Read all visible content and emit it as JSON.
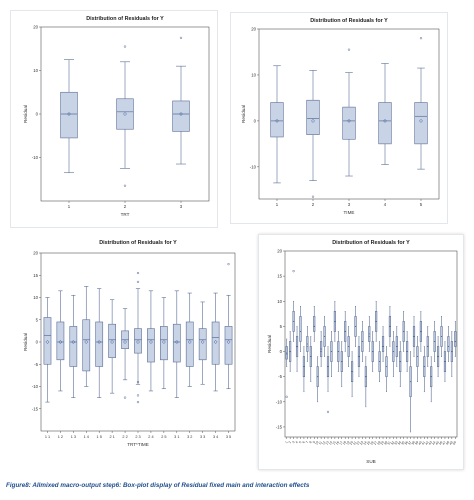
{
  "caption": "Figure8: Allmixed macro-output step6: Box-plot display of Residual fixed main and interaction effects",
  "colors": {
    "box_fill": "#c9d3e6",
    "box_stroke": "#5b6e96",
    "mean_marker": "#3b5f9e",
    "axis": "#555555"
  },
  "chart_data": [
    {
      "type": "box",
      "title": "Distribution of Residuals for Y",
      "xlabel": "TRT",
      "ylabel": "Residual",
      "ylim": [
        -20,
        20
      ],
      "yticks": [
        -10,
        0,
        10,
        20
      ],
      "categories": [
        "1",
        "2",
        "3"
      ],
      "boxes": [
        {
          "min": -13.5,
          "q1": -5.5,
          "median": 0.0,
          "q3": 5.0,
          "max": 12.5,
          "mean": 0.0,
          "outliers": []
        },
        {
          "min": -12.5,
          "q1": -3.5,
          "median": 0.5,
          "q3": 3.5,
          "max": 12.0,
          "mean": 0.0,
          "outliers": [
            15.5,
            -16.5
          ]
        },
        {
          "min": -11.5,
          "q1": -4.0,
          "median": 0.0,
          "q3": 3.0,
          "max": 11.0,
          "mean": 0.0,
          "outliers": [
            17.5
          ]
        }
      ]
    },
    {
      "type": "box",
      "title": "Distribution of Residuals for Y",
      "xlabel": "TIME",
      "ylabel": "Residual",
      "ylim": [
        -17,
        20
      ],
      "yticks": [
        -10,
        0,
        10,
        20
      ],
      "categories": [
        "1",
        "2",
        "3",
        "4",
        "5"
      ],
      "boxes": [
        {
          "min": -13.5,
          "q1": -3.5,
          "median": 0.0,
          "q3": 4.0,
          "max": 12.0,
          "mean": 0.0,
          "outliers": []
        },
        {
          "min": -13.0,
          "q1": -3.0,
          "median": 0.5,
          "q3": 4.5,
          "max": 11.0,
          "mean": 0.0,
          "outliers": [
            -16.5
          ]
        },
        {
          "min": -12.0,
          "q1": -4.0,
          "median": 0.0,
          "q3": 3.0,
          "max": 10.5,
          "mean": 0.0,
          "outliers": [
            15.5
          ]
        },
        {
          "min": -9.5,
          "q1": -5.0,
          "median": 0.0,
          "q3": 4.0,
          "max": 12.5,
          "mean": 0.0,
          "outliers": []
        },
        {
          "min": -10.5,
          "q1": -5.0,
          "median": 1.0,
          "q3": 4.0,
          "max": 11.5,
          "mean": 0.0,
          "outliers": [
            18.0
          ]
        }
      ]
    },
    {
      "type": "box",
      "title": "Distribution of Residuals for Y",
      "xlabel": "TRT*TIME",
      "ylabel": "Residual",
      "ylim": [
        -20,
        20
      ],
      "yticks": [
        -15,
        -10,
        -5,
        0,
        5,
        10,
        15,
        20
      ],
      "categories": [
        "1 1",
        "1 2",
        "1 3",
        "1 4",
        "1 5",
        "2 1",
        "2 2",
        "2 3",
        "2 4",
        "2 5",
        "3 1",
        "3 2",
        "3 3",
        "3 4",
        "3 5"
      ],
      "boxes": [
        {
          "min": -13.5,
          "q1": -5.0,
          "median": 1.5,
          "q3": 5.5,
          "max": 10.0,
          "mean": 0.0,
          "outliers": []
        },
        {
          "min": -11.0,
          "q1": -4.0,
          "median": 0.0,
          "q3": 4.5,
          "max": 11.5,
          "mean": 0.0,
          "outliers": []
        },
        {
          "min": -12.5,
          "q1": -5.5,
          "median": 0.0,
          "q3": 3.5,
          "max": 10.5,
          "mean": 0.0,
          "outliers": []
        },
        {
          "min": -10.0,
          "q1": -6.5,
          "median": 0.5,
          "q3": 5.0,
          "max": 12.5,
          "mean": 0.0,
          "outliers": []
        },
        {
          "min": -12.5,
          "q1": -5.5,
          "median": 0.0,
          "q3": 4.5,
          "max": 12.0,
          "mean": 0.0,
          "outliers": []
        },
        {
          "min": -11.5,
          "q1": -3.5,
          "median": 0.5,
          "q3": 4.0,
          "max": 9.5,
          "mean": 0.0,
          "outliers": []
        },
        {
          "min": -8.5,
          "q1": -1.5,
          "median": 0.5,
          "q3": 2.5,
          "max": 7.5,
          "mean": 0.0,
          "outliers": [
            -12.5
          ]
        },
        {
          "min": -9.5,
          "q1": -2.5,
          "median": 0.5,
          "q3": 3.0,
          "max": 12.0,
          "mean": 0.0,
          "outliers": [
            15.5,
            13.5,
            -13.5,
            -9.0,
            -12.0
          ]
        },
        {
          "min": -11.0,
          "q1": -4.5,
          "median": 0.5,
          "q3": 3.0,
          "max": 11.5,
          "mean": 0.0,
          "outliers": []
        },
        {
          "min": -10.5,
          "q1": -4.0,
          "median": 0.5,
          "q3": 3.5,
          "max": 10.0,
          "mean": 0.0,
          "outliers": []
        },
        {
          "min": -12.5,
          "q1": -4.5,
          "median": 0.0,
          "q3": 4.0,
          "max": 11.5,
          "mean": 0.0,
          "outliers": []
        },
        {
          "min": -10.0,
          "q1": -5.5,
          "median": 0.5,
          "q3": 4.5,
          "max": 11.0,
          "mean": 0.0,
          "outliers": []
        },
        {
          "min": -9.5,
          "q1": -4.0,
          "median": 0.5,
          "q3": 3.0,
          "max": 9.0,
          "mean": 0.0,
          "outliers": []
        },
        {
          "min": -11.0,
          "q1": -5.0,
          "median": 1.0,
          "q3": 4.5,
          "max": 11.0,
          "mean": 0.0,
          "outliers": []
        },
        {
          "min": -10.5,
          "q1": -5.0,
          "median": 0.5,
          "q3": 3.5,
          "max": 10.5,
          "mean": 0.0,
          "outliers": [
            17.5
          ]
        }
      ]
    },
    {
      "type": "box",
      "title": "Distribution of Residuals for Y",
      "xlabel": "SUB",
      "ylabel": "Residual",
      "ylim": [
        -17,
        20
      ],
      "yticks": [
        -15,
        -10,
        -5,
        0,
        5,
        10,
        15,
        20
      ],
      "categories": [
        "1",
        "2",
        "3",
        "4",
        "5",
        "6",
        "7",
        "8",
        "9",
        "10",
        "11",
        "12",
        "13",
        "14",
        "15",
        "16",
        "17",
        "18",
        "19",
        "20",
        "21",
        "22",
        "23",
        "24",
        "25",
        "26",
        "27",
        "28",
        "29",
        "30",
        "31",
        "32",
        "33",
        "34",
        "35",
        "36",
        "37",
        "38",
        "39",
        "40",
        "41",
        "42",
        "43",
        "44",
        "45",
        "46",
        "47",
        "48",
        "49",
        "50"
      ],
      "boxes": [
        {
          "min": -3.0,
          "q1": -1.5,
          "median": -0.5,
          "q3": 1.0,
          "max": 2.5,
          "mean": -0.3,
          "outliers": [
            -9.0
          ]
        },
        {
          "min": -4.0,
          "q1": -2.0,
          "median": 0.0,
          "q3": 2.0,
          "max": 4.0,
          "mean": 0.0,
          "outliers": []
        },
        {
          "min": 2.0,
          "q1": 4.0,
          "median": 6.0,
          "q3": 8.0,
          "max": 10.0,
          "mean": 6.0,
          "outliers": [
            16.0
          ]
        },
        {
          "min": -4.0,
          "q1": -1.0,
          "median": 1.0,
          "q3": 3.0,
          "max": 5.0,
          "mean": 1.0,
          "outliers": []
        },
        {
          "min": 0.0,
          "q1": 2.0,
          "median": 4.0,
          "q3": 7.0,
          "max": 9.0,
          "mean": 4.0,
          "outliers": []
        },
        {
          "min": -8.0,
          "q1": -5.0,
          "median": -3.0,
          "q3": -1.0,
          "max": 1.0,
          "mean": -3.0,
          "outliers": []
        },
        {
          "min": -2.0,
          "q1": 0.0,
          "median": 1.0,
          "q3": 3.0,
          "max": 5.0,
          "mean": 1.5,
          "outliers": []
        },
        {
          "min": -6.0,
          "q1": -3.0,
          "median": -1.0,
          "q3": 1.0,
          "max": 3.0,
          "mean": -1.0,
          "outliers": []
        },
        {
          "min": 2.0,
          "q1": 4.0,
          "median": 5.0,
          "q3": 7.0,
          "max": 9.0,
          "mean": 5.0,
          "outliers": []
        },
        {
          "min": -10.0,
          "q1": -7.0,
          "median": -5.0,
          "q3": -3.0,
          "max": -1.0,
          "mean": -5.0,
          "outliers": []
        },
        {
          "min": -3.0,
          "q1": -1.0,
          "median": 0.0,
          "q3": 2.0,
          "max": 4.0,
          "mean": 0.5,
          "outliers": []
        },
        {
          "min": -1.0,
          "q1": 1.0,
          "median": 3.0,
          "q3": 5.0,
          "max": 7.0,
          "mean": 3.0,
          "outliers": []
        },
        {
          "min": -8.0,
          "q1": -5.0,
          "median": -3.0,
          "q3": -1.0,
          "max": 1.0,
          "mean": -3.0,
          "outliers": [
            -12.0
          ]
        },
        {
          "min": -5.0,
          "q1": -2.0,
          "median": 0.0,
          "q3": 2.0,
          "max": 4.0,
          "mean": 0.0,
          "outliers": []
        },
        {
          "min": 2.0,
          "q1": 4.0,
          "median": 6.0,
          "q3": 8.0,
          "max": 10.0,
          "mean": 6.0,
          "outliers": []
        },
        {
          "min": -4.0,
          "q1": -2.0,
          "median": 0.0,
          "q3": 2.0,
          "max": 4.0,
          "mean": 0.0,
          "outliers": []
        },
        {
          "min": -7.0,
          "q1": -4.0,
          "median": -2.0,
          "q3": 0.0,
          "max": 2.0,
          "mean": -2.0,
          "outliers": []
        },
        {
          "min": 0.0,
          "q1": 2.0,
          "median": 4.0,
          "q3": 6.0,
          "max": 8.0,
          "mean": 4.0,
          "outliers": []
        },
        {
          "min": -3.0,
          "q1": -1.0,
          "median": 1.0,
          "q3": 3.0,
          "max": 5.0,
          "mean": 1.0,
          "outliers": []
        },
        {
          "min": -9.0,
          "q1": -6.0,
          "median": -4.0,
          "q3": -2.0,
          "max": 0.0,
          "mean": -4.0,
          "outliers": []
        },
        {
          "min": 1.0,
          "q1": 3.0,
          "median": 5.0,
          "q3": 7.0,
          "max": 9.0,
          "mean": 5.0,
          "outliers": []
        },
        {
          "min": -5.0,
          "q1": -3.0,
          "median": -1.0,
          "q3": 1.0,
          "max": 3.0,
          "mean": -1.0,
          "outliers": []
        },
        {
          "min": -2.0,
          "q1": 0.0,
          "median": 2.0,
          "q3": 4.0,
          "max": 6.0,
          "mean": 2.0,
          "outliers": []
        },
        {
          "min": -11.0,
          "q1": -7.0,
          "median": -5.0,
          "q3": -3.0,
          "max": -1.0,
          "mean": -5.0,
          "outliers": []
        },
        {
          "min": 0.0,
          "q1": 2.0,
          "median": 3.0,
          "q3": 5.0,
          "max": 7.0,
          "mean": 3.5,
          "outliers": []
        },
        {
          "min": -4.0,
          "q1": -2.0,
          "median": 0.0,
          "q3": 2.0,
          "max": 4.0,
          "mean": 0.0,
          "outliers": []
        },
        {
          "min": 2.0,
          "q1": 4.0,
          "median": 6.0,
          "q3": 8.0,
          "max": 10.0,
          "mean": 6.0,
          "outliers": []
        },
        {
          "min": -6.0,
          "q1": -4.0,
          "median": -2.0,
          "q3": 0.0,
          "max": 2.0,
          "mean": -2.0,
          "outliers": []
        },
        {
          "min": -2.0,
          "q1": 0.0,
          "median": 1.0,
          "q3": 3.0,
          "max": 5.0,
          "mean": 1.0,
          "outliers": []
        },
        {
          "min": -8.0,
          "q1": -5.0,
          "median": -3.0,
          "q3": -1.0,
          "max": 1.0,
          "mean": -3.0,
          "outliers": []
        },
        {
          "min": 1.0,
          "q1": 3.0,
          "median": 5.0,
          "q3": 7.0,
          "max": 9.0,
          "mean": 5.0,
          "outliers": []
        },
        {
          "min": -5.0,
          "q1": -2.0,
          "median": 0.0,
          "q3": 2.0,
          "max": 4.0,
          "mean": 0.0,
          "outliers": []
        },
        {
          "min": -3.0,
          "q1": -1.0,
          "median": 1.0,
          "q3": 3.0,
          "max": 5.0,
          "mean": 1.0,
          "outliers": []
        },
        {
          "min": -7.0,
          "q1": -4.0,
          "median": -2.0,
          "q3": 0.0,
          "max": 2.0,
          "mean": -2.0,
          "outliers": []
        },
        {
          "min": 0.0,
          "q1": 2.0,
          "median": 4.0,
          "q3": 6.0,
          "max": 8.0,
          "mean": 4.0,
          "outliers": []
        },
        {
          "min": -4.0,
          "q1": -2.0,
          "median": 0.0,
          "q3": 2.0,
          "max": 4.0,
          "mean": 0.0,
          "outliers": []
        },
        {
          "min": -16.0,
          "q1": -9.0,
          "median": -6.0,
          "q3": -3.0,
          "max": 0.0,
          "mean": -6.0,
          "outliers": []
        },
        {
          "min": -1.0,
          "q1": 1.0,
          "median": 3.0,
          "q3": 5.0,
          "max": 7.0,
          "mean": 3.0,
          "outliers": []
        },
        {
          "min": -6.0,
          "q1": -3.0,
          "median": -1.0,
          "q3": 1.0,
          "max": 3.0,
          "mean": -1.0,
          "outliers": []
        },
        {
          "min": 0.0,
          "q1": 2.0,
          "median": 4.0,
          "q3": 6.0,
          "max": 8.0,
          "mean": 4.0,
          "outliers": []
        },
        {
          "min": -8.0,
          "q1": -5.0,
          "median": -3.0,
          "q3": -1.0,
          "max": 1.0,
          "mean": -3.0,
          "outliers": []
        },
        {
          "min": -3.0,
          "q1": -1.0,
          "median": 1.0,
          "q3": 3.0,
          "max": 5.0,
          "mean": 1.0,
          "outliers": []
        },
        {
          "min": -10.0,
          "q1": -7.0,
          "median": -5.0,
          "q3": -3.0,
          "max": -1.0,
          "mean": -5.0,
          "outliers": []
        },
        {
          "min": -2.0,
          "q1": 0.0,
          "median": 2.0,
          "q3": 4.0,
          "max": 6.0,
          "mean": 2.0,
          "outliers": []
        },
        {
          "min": -5.0,
          "q1": -3.0,
          "median": -1.0,
          "q3": 1.0,
          "max": 3.0,
          "mean": -1.0,
          "outliers": []
        },
        {
          "min": -1.0,
          "q1": 1.0,
          "median": 3.0,
          "q3": 5.0,
          "max": 7.0,
          "mean": 3.0,
          "outliers": []
        },
        {
          "min": -6.0,
          "q1": -4.0,
          "median": -2.0,
          "q3": 0.0,
          "max": 2.0,
          "mean": -2.0,
          "outliers": []
        },
        {
          "min": -2.0,
          "q1": 0.0,
          "median": 1.0,
          "q3": 3.0,
          "max": 5.0,
          "mean": 1.0,
          "outliers": []
        },
        {
          "min": -5.0,
          "q1": -2.0,
          "median": 0.0,
          "q3": 2.0,
          "max": 4.0,
          "mean": 0.0,
          "outliers": []
        },
        {
          "min": -1.0,
          "q1": 1.0,
          "median": 2.0,
          "q3": 4.0,
          "max": 6.0,
          "mean": 2.0,
          "outliers": []
        }
      ]
    }
  ]
}
